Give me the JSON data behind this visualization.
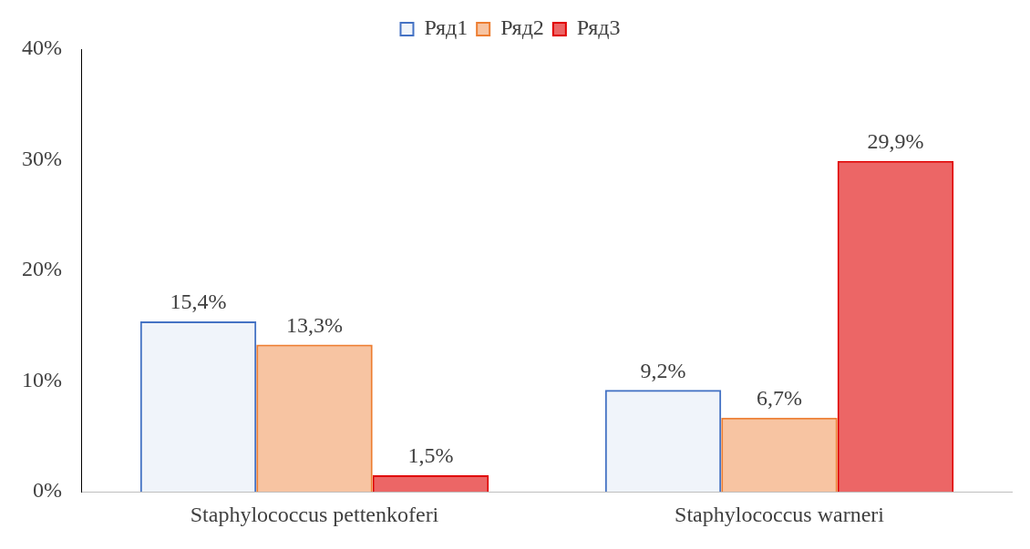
{
  "chart_data": {
    "type": "bar",
    "categories": [
      "Staphylococcus pettenkoferi",
      "Staphylococcus warneri"
    ],
    "series": [
      {
        "name": "Ряд1",
        "color": "#4472c4",
        "values": [
          15.4,
          9.2
        ],
        "value_labels": [
          "15,4%",
          "9,2%"
        ]
      },
      {
        "name": "Ряд2",
        "color": "#ed7d31",
        "values": [
          13.3,
          6.7
        ],
        "value_labels": [
          "13,3%",
          "6,7%"
        ]
      },
      {
        "name": "Ряд3",
        "color": "#e00000",
        "values": [
          1.5,
          29.9
        ],
        "value_labels": [
          "1,5%",
          "29,9%"
        ]
      }
    ],
    "ylim": [
      0,
      40
    ],
    "yticks": [
      {
        "value": 0,
        "label": "0%"
      },
      {
        "value": 10,
        "label": "10%"
      },
      {
        "value": 20,
        "label": "20%"
      },
      {
        "value": 30,
        "label": "30%"
      },
      {
        "value": 40,
        "label": "40%"
      }
    ],
    "grid": false,
    "legend": "top"
  }
}
